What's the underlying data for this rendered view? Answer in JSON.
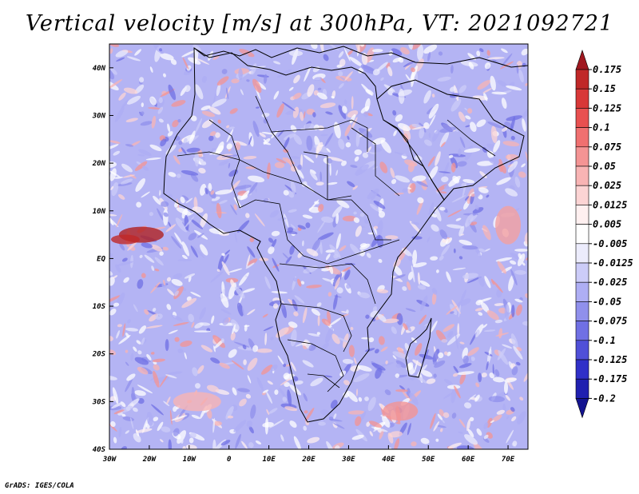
{
  "title": "Vertical velocity [m/s] at 300hPa, VT: 2021092721",
  "credit": "GrADS: IGES/COLA",
  "map": {
    "region": "Africa",
    "lon_range": [
      -30,
      75
    ],
    "lat_range": [
      -40,
      45
    ],
    "lon_ticks": [
      "30W",
      "20W",
      "10W",
      "0",
      "10E",
      "20E",
      "30E",
      "40E",
      "50E",
      "60E",
      "70E"
    ],
    "lat_ticks": [
      "40N",
      "30N",
      "20N",
      "10N",
      "EQ",
      "10S",
      "20S",
      "30S",
      "40S"
    ],
    "field_colors": {
      "ocean_base": "#b4b4f4",
      "land_base": "#c8c4f8",
      "coast": "#000000"
    }
  },
  "colorbar": {
    "levels": [
      "0.175",
      "0.15",
      "0.125",
      "0.1",
      "0.075",
      "0.05",
      "0.025",
      "0.0125",
      "0.005",
      "-0.005",
      "-0.0125",
      "-0.025",
      "-0.05",
      "-0.075",
      "-0.1",
      "-0.125",
      "-0.175",
      "-0.2"
    ],
    "colors": [
      "#a01820",
      "#c02828",
      "#d83838",
      "#e85050",
      "#f07070",
      "#f49494",
      "#f8b4b4",
      "#fcd4d4",
      "#fff0f0",
      "#ffffff",
      "#ececfc",
      "#ccccf8",
      "#aeaef4",
      "#9090ec",
      "#7070e4",
      "#5050d8",
      "#3030c8",
      "#2020b0",
      "#141490"
    ]
  }
}
